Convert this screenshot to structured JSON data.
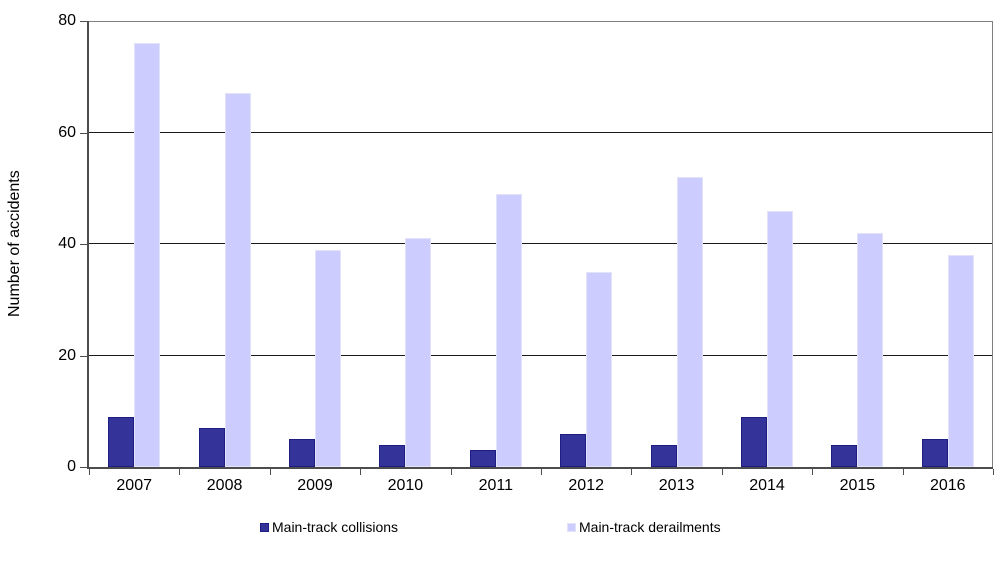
{
  "chart_data": {
    "type": "bar",
    "title": "",
    "ylabel": "Number of accidents",
    "xlabel": "",
    "categories": [
      "2007",
      "2008",
      "2009",
      "2010",
      "2011",
      "2012",
      "2013",
      "2014",
      "2015",
      "2016"
    ],
    "series": [
      {
        "name": "Main-track collisions",
        "values": [
          9,
          7,
          5,
          4,
          3,
          6,
          4,
          9,
          4,
          5
        ],
        "fill": "#333399",
        "border": "#1e1e82"
      },
      {
        "name": "Main-track derailments",
        "values": [
          76,
          67,
          39,
          41,
          49,
          35,
          52,
          46,
          42,
          38
        ],
        "fill": "#ccccff",
        "border": "#e2e2f8"
      }
    ],
    "ylim": [
      0,
      80
    ],
    "yticks": [
      0,
      20,
      40,
      60,
      80
    ],
    "gridlines": [
      20,
      40,
      60
    ],
    "grid": true,
    "legend_position": "bottom"
  },
  "colors": {
    "axis": "#4d4d4d",
    "plot_border": "#808080",
    "gridline": "#1a1a1a",
    "background": "#ffffff",
    "text": "#000000"
  }
}
